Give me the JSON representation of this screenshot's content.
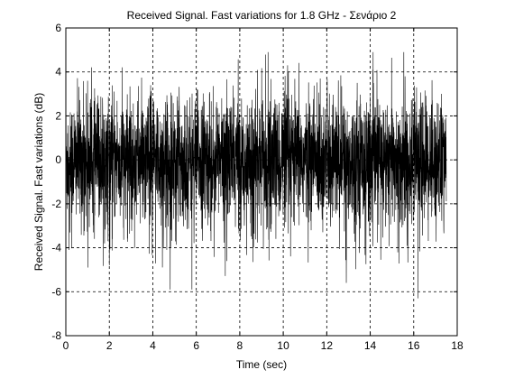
{
  "chart_data": {
    "type": "line",
    "title": "Received Signal. Fast variations for 1.8 GHz - Σενάριο 2",
    "xlabel": "Time (sec)",
    "ylabel": "Received Signal. Fast variations (dB)",
    "xlim": [
      0,
      18
    ],
    "ylim": [
      -8,
      6
    ],
    "xticks": [
      0,
      2,
      4,
      6,
      8,
      10,
      12,
      14,
      16,
      18
    ],
    "yticks": [
      6,
      4,
      2,
      0,
      -2,
      -4,
      -6,
      -8
    ],
    "grid": true,
    "grid_style": "dashed",
    "series": [
      {
        "color": "#000000",
        "x_range": [
          0,
          17.5
        ],
        "typical_band": [
          -2.5,
          2.5
        ],
        "max": 4.9,
        "min": -6.3,
        "notable_peaks": [
          {
            "x": 1.0,
            "y": 3.6
          },
          {
            "x": 3.9,
            "y": 3.4
          },
          {
            "x": 9.3,
            "y": 4.9
          },
          {
            "x": 10.2,
            "y": 4.3
          },
          {
            "x": 11.7,
            "y": 3.7
          },
          {
            "x": 13.4,
            "y": 3.5
          },
          {
            "x": 15.6,
            "y": 3.8
          }
        ],
        "notable_dips": [
          {
            "x": 4.8,
            "y": -5.9
          },
          {
            "x": 5.8,
            "y": -5.9
          },
          {
            "x": 12.9,
            "y": -5.6
          },
          {
            "x": 16.2,
            "y": -6.3
          },
          {
            "x": 2.0,
            "y": -4.8
          },
          {
            "x": 7.4,
            "y": -4.6
          }
        ]
      }
    ]
  }
}
